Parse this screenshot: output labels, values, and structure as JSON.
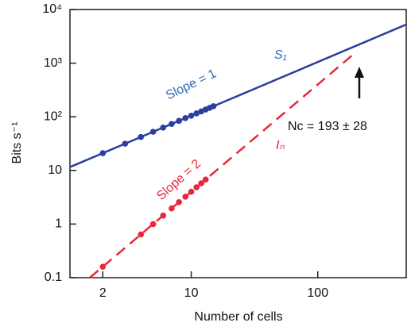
{
  "chart_data": {
    "type": "line",
    "x_label": "Number of cells",
    "y_label": "Bits s⁻¹",
    "log_x": true,
    "log_y": true,
    "xlim": [
      1.1,
      500
    ],
    "ylim": [
      0.1,
      10000
    ],
    "xticks": [
      2,
      10,
      100
    ],
    "yticks": [
      0.1,
      1,
      10,
      {
        "value": 100,
        "label": "10²"
      },
      {
        "value": 1000,
        "label": "10³"
      },
      {
        "value": 10000,
        "label": "10⁴"
      }
    ],
    "series": [
      {
        "color": "#2b3fa0",
        "dash": false,
        "markers": false,
        "x": [
          1.1,
          500
        ],
        "values": [
          11.55,
          5250
        ]
      },
      {
        "color": "#2b3fa0",
        "dash": false,
        "markers": true,
        "x": [
          2,
          3,
          4,
          5,
          6,
          7,
          8,
          9,
          10,
          11,
          12,
          13,
          14,
          15
        ],
        "values": [
          21,
          31.5,
          42,
          52.5,
          63,
          73.5,
          84,
          94.5,
          105,
          115.5,
          126,
          136.5,
          147,
          157.5
        ]
      },
      {
        "color": "#e8283a",
        "dash": true,
        "markers": false,
        "x": [
          1.58,
          200
        ],
        "values": [
          0.1,
          1600
        ]
      },
      {
        "color": "#e8283a",
        "dash": false,
        "markers": true,
        "x": [
          2,
          4,
          5,
          6,
          7,
          8,
          9,
          10,
          11,
          12,
          13
        ],
        "values": [
          0.16,
          0.64,
          1.0,
          1.44,
          1.96,
          2.56,
          3.24,
          4,
          4.84,
          5.76,
          6.76
        ]
      }
    ],
    "annotations": [
      {
        "text": "S₁",
        "color": "#2b6cb8"
      },
      {
        "text": "Slope = 1",
        "color": "#2b6cb8"
      },
      {
        "text": "Iₙ",
        "color": "#e8283a"
      },
      {
        "text": "Slope = 2",
        "color": "#e8283a"
      },
      {
        "text": "Nc = 193 ± 28",
        "color": "#111111"
      }
    ]
  }
}
